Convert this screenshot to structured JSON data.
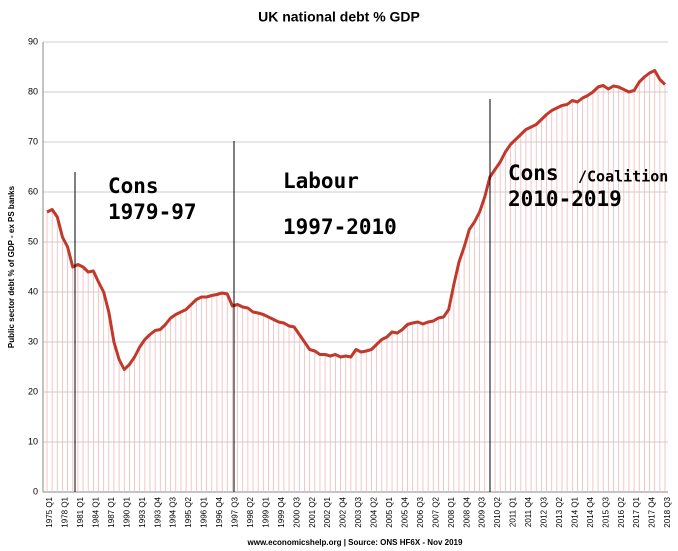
{
  "chart_data": {
    "type": "line",
    "title": "UK national debt % GDP",
    "y_label": "Public sector debt % of GDP - ex PS banks",
    "source": "www.economicshelp.org | Source: ONS HF6X - Nov 2019",
    "annotations": [
      "Cons",
      "1979-97",
      "Labour",
      "1997-2010",
      "Cons",
      "/Coalition",
      "2010-2019"
    ],
    "color": "#c0392b",
    "drop_color": "#f2b8b8",
    "grid": true,
    "ylim": [
      0,
      90
    ],
    "yticks": [
      0,
      10,
      20,
      30,
      40,
      50,
      60,
      70,
      80,
      90
    ],
    "categories": [
      "1975 Q1",
      null,
      null,
      "1978 Q1",
      null,
      null,
      "1981 Q1",
      null,
      null,
      "1984 Q1",
      null,
      null,
      "1987 Q1",
      null,
      null,
      "1990 Q1",
      null,
      null,
      "1993 Q1",
      null,
      null,
      "1993 Q4",
      null,
      null,
      "1994 Q3",
      null,
      null,
      "1995 Q2",
      null,
      null,
      "1996 Q1",
      null,
      null,
      "1996 Q4",
      null,
      null,
      "1997 Q3",
      null,
      null,
      "1998 Q2",
      null,
      null,
      "1999 Q1",
      null,
      null,
      "1999 Q4",
      null,
      null,
      "2000 Q3",
      null,
      null,
      "2001 Q2",
      null,
      null,
      "2002 Q1",
      null,
      null,
      "2002 Q4",
      null,
      null,
      "2003 Q3",
      null,
      null,
      "2004 Q2",
      null,
      null,
      "2005 Q1",
      null,
      null,
      "2005 Q4",
      null,
      null,
      "2006 Q3",
      null,
      null,
      "2007 Q2",
      null,
      null,
      "2008 Q1",
      null,
      null,
      "2008 Q4",
      null,
      null,
      "2009 Q3",
      null,
      null,
      "2010 Q2",
      null,
      null,
      "2011 Q1",
      null,
      null,
      "2011 Q4",
      null,
      null,
      "2012 Q3",
      null,
      null,
      "2013 Q2",
      null,
      null,
      "2014 Q1",
      null,
      null,
      "2014 Q4",
      null,
      null,
      "2015 Q3",
      null,
      null,
      "2016 Q2",
      null,
      null,
      "2017 Q1",
      null,
      null,
      "2017 Q4",
      null,
      null,
      "2018 Q3"
    ],
    "values": [
      56,
      56.5,
      55,
      51,
      49,
      45,
      45.5,
      45,
      44,
      44.2,
      42,
      40,
      36,
      30,
      26.5,
      24.5,
      25.5,
      27,
      29,
      30.5,
      31.5,
      32.3,
      32.5,
      33.5,
      34.8,
      35.5,
      36,
      36.5,
      37.5,
      38.5,
      39,
      39,
      39.3,
      39.5,
      39.8,
      39.6,
      37.2,
      37.5,
      37,
      36.8,
      36,
      35.8,
      35.5,
      35,
      34.5,
      34,
      33.8,
      33.2,
      33,
      31.5,
      30,
      28.5,
      28.2,
      27.5,
      27.5,
      27.2,
      27.5,
      27,
      27.2,
      27,
      28.5,
      28,
      28.2,
      28.5,
      29.5,
      30.5,
      31,
      32,
      31.8,
      32.5,
      33.5,
      33.8,
      34,
      33.6,
      34,
      34.2,
      34.8,
      35,
      36.5,
      41.5,
      46,
      49,
      52.5,
      54,
      56,
      59,
      63,
      64.5,
      66,
      68,
      69.5,
      70.5,
      71.5,
      72.5,
      73,
      73.5,
      74.5,
      75.5,
      76.3,
      76.8,
      77.3,
      77.5,
      78.3,
      78,
      78.8,
      79.3,
      80,
      81,
      81.3,
      80.6,
      81.2,
      81,
      80.5,
      80,
      80.3,
      82,
      83,
      83.8,
      84.3,
      82.5,
      81.5
    ]
  }
}
